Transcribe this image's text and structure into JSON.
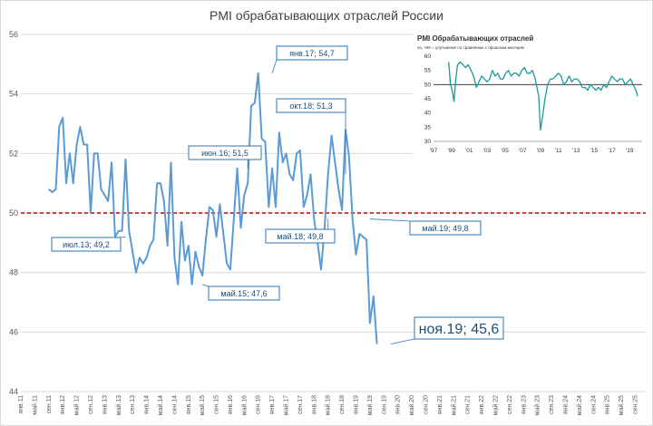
{
  "chart_data": [
    {
      "type": "line",
      "title": "PMI обрабатывающих  отраслей России",
      "ylim": [
        44,
        56
      ],
      "yticks": [
        "44",
        "46",
        "48",
        "50",
        "52",
        "54",
        "56"
      ],
      "xlabels": [
        "янв.11",
        "май.11",
        "сен.11",
        "янв.12",
        "май.12",
        "сен.12",
        "янв.13",
        "май.13",
        "сен.13",
        "янв.14",
        "май.14",
        "сен.14",
        "янв.15",
        "май.15",
        "сен.15",
        "янв.16",
        "май.16",
        "сен.16",
        "янв.17",
        "май.17",
        "сен.17",
        "янв.18",
        "май.18",
        "сен.18",
        "янв.19",
        "май.19",
        "сен.19",
        "янв.20",
        "май.20",
        "сен.20",
        "янв.21",
        "май.21",
        "сен.21",
        "янв.22",
        "май.22",
        "сен.22",
        "янв.23",
        "май.23",
        "сен.23",
        "янв.24",
        "май.24",
        "сен.24",
        "янв.25",
        "май.25",
        "сен.25"
      ],
      "x_range": [
        "янв.11",
        "дек.25"
      ],
      "reference_line": {
        "value": 50,
        "color": "#c00000",
        "style": "dashed"
      },
      "line_color": "#5b9bd5",
      "series": [
        {
          "start": "сен.11",
          "values": [
            50.8,
            50.7,
            50.8,
            52.9,
            53.2,
            51.0,
            52.0,
            51.0,
            52.3,
            52.9,
            52.3,
            52.3,
            50.0,
            52.0,
            52.0,
            50.8,
            50.6,
            50.4,
            51.7,
            49.2,
            49.4,
            49.4,
            51.8,
            49.4,
            48.7,
            48.0,
            48.5,
            48.3,
            48.5,
            48.9,
            49.1,
            51.0,
            51.0,
            50.4,
            48.9,
            51.7,
            48.5,
            47.6,
            49.7,
            48.4,
            48.9,
            47.6,
            48.7,
            48.2,
            47.9,
            49.1,
            50.2,
            50.1,
            49.2,
            50.3,
            49.3,
            48.3,
            48.1,
            49.8,
            51.5,
            49.5,
            50.6,
            51.0,
            53.6,
            53.7,
            54.7,
            52.5,
            52.4,
            50.2,
            51.5,
            50.2,
            52.7,
            51.7,
            52.0,
            51.3,
            51.1,
            52.0,
            52.1,
            50.2,
            50.6,
            51.3,
            49.8,
            49.0,
            48.1,
            49.5,
            51.3,
            52.6,
            51.7,
            50.8,
            50.1,
            52.8,
            51.9,
            49.8,
            48.6,
            49.3,
            49.2,
            49.1,
            46.3,
            47.2,
            45.6
          ]
        }
      ],
      "callouts": [
        {
          "label": "июл.13; 49,2",
          "value": 49.2
        },
        {
          "label": "май.15; 47,6",
          "value": 47.6
        },
        {
          "label": "июн.16; 51,5",
          "value": 51.5
        },
        {
          "label": "янв.17; 54,7",
          "value": 54.7
        },
        {
          "label": "окт.18; 51,3",
          "value": 51.3
        },
        {
          "label": "май.18; 49,8",
          "value": 49.8
        },
        {
          "label": "май.19; 49,8",
          "value": 49.8
        },
        {
          "label": "ноя.19; 45,6",
          "value": 45.6
        }
      ]
    },
    {
      "type": "line",
      "title": "PMI Обрабатывающих отраслей",
      "subtitle": "sa, >50 = улучшение по сравнению с прошлым месяцем",
      "ylim": [
        30,
        60
      ],
      "yticks": [
        "30",
        "35",
        "40",
        "45",
        "50",
        "55",
        "60"
      ],
      "xticks": [
        "'97",
        "'99",
        "'01",
        "'03",
        "'05",
        "'07",
        "'09",
        "'11",
        "'13",
        "'15",
        "'17",
        "'19"
      ],
      "reference_line": {
        "value": 50
      },
      "line_color": "#1a9a9a",
      "series": [
        {
          "x": [
            1998.7,
            1998.9,
            1999.1,
            1999.3,
            1999.5,
            1999.7,
            2000.0,
            2000.3,
            2000.6,
            2000.9,
            2001.2,
            2001.5,
            2001.8,
            2002.1,
            2002.4,
            2002.7,
            2003.0,
            2003.3,
            2003.6,
            2003.9,
            2004.2,
            2004.5,
            2004.8,
            2005.1,
            2005.4,
            2005.7,
            2006.0,
            2006.3,
            2006.6,
            2006.9,
            2007.2,
            2007.5,
            2007.8,
            2008.1,
            2008.4,
            2008.6,
            2008.8,
            2009.0,
            2009.2,
            2009.5,
            2009.8,
            2010.1,
            2010.4,
            2010.7,
            2011.0,
            2011.3,
            2011.6,
            2011.9,
            2012.2,
            2012.5,
            2012.8,
            2013.1,
            2013.4,
            2013.7,
            2014.0,
            2014.3,
            2014.6,
            2014.9,
            2015.2,
            2015.5,
            2015.8,
            2016.1,
            2016.4,
            2016.7,
            2017.0,
            2017.3,
            2017.6,
            2017.9,
            2018.2,
            2018.5,
            2018.8,
            2019.1,
            2019.4,
            2019.7,
            2019.9
          ],
          "values": [
            58,
            50,
            48,
            44,
            52,
            57,
            58,
            57,
            56,
            57,
            55,
            53,
            49,
            51,
            53,
            52,
            51,
            52,
            55,
            53,
            54,
            52,
            52,
            54,
            55,
            53,
            54,
            54,
            53,
            55,
            56,
            54,
            54,
            55,
            52,
            49,
            46,
            34,
            38,
            45,
            50,
            52,
            52,
            53,
            54,
            53,
            50,
            51,
            53,
            51,
            52,
            52,
            51,
            49,
            49,
            48,
            50,
            49,
            48,
            49,
            48,
            50,
            49,
            51,
            53,
            52,
            51,
            52,
            52,
            50,
            51,
            52,
            50,
            48,
            46
          ]
        }
      ]
    }
  ]
}
